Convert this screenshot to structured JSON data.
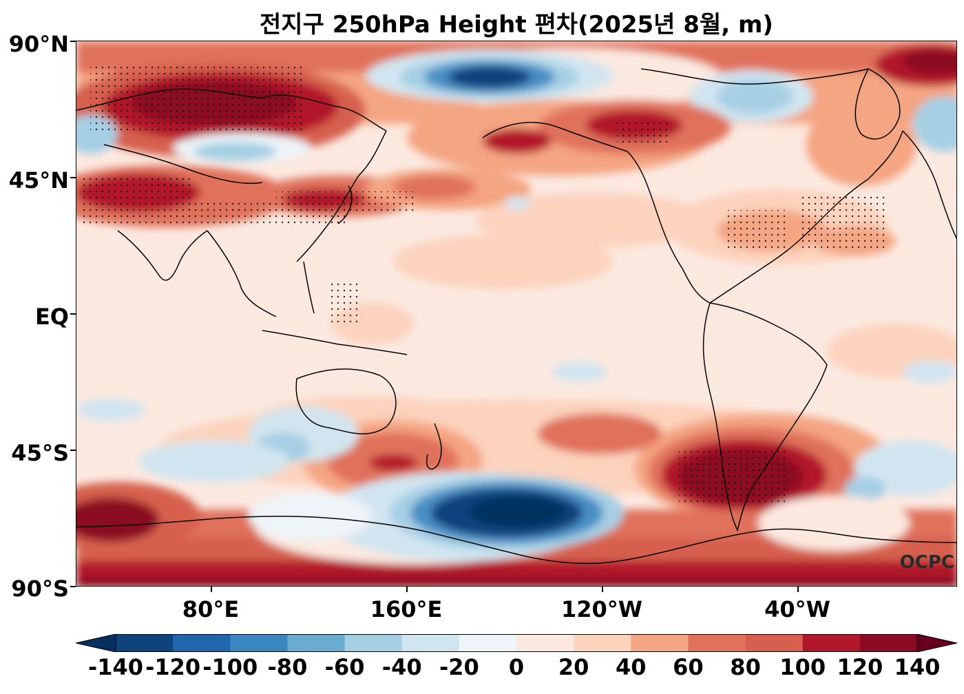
{
  "title": "전지구 250hPa Height 편차(2025년 8월, m)",
  "watermark": "OCPC",
  "lat_ticks": [
    "90°N",
    "45°N",
    "EQ",
    "45°S",
    "90°S"
  ],
  "lon_ticks": [
    "80°E",
    "160°E",
    "120°W",
    "40°W"
  ],
  "colorbar": {
    "labels": [
      "-140",
      "-120",
      "-100",
      "-80",
      "-60",
      "-40",
      "-20",
      "0",
      "20",
      "40",
      "60",
      "80",
      "100",
      "120",
      "140"
    ],
    "colors": [
      "#053061",
      "#0f437b",
      "#2166ac",
      "#3a87c0",
      "#6aacd0",
      "#a6cfe4",
      "#d1e5f0",
      "#eef4f8",
      "#fbe9e0",
      "#fcd3bd",
      "#f4a582",
      "#e0725c",
      "#d6604d",
      "#b2182b",
      "#8b0a24",
      "#67001f"
    ]
  },
  "map": {
    "background_color": "#fbe9e0",
    "positive_colors": [
      "#fcd3bd",
      "#f4a582",
      "#e0725c",
      "#b2182b",
      "#67001f"
    ],
    "negative_colors": [
      "#d1e5f0",
      "#a6cfe4",
      "#4a8fc4",
      "#0f437b",
      "#053061"
    ],
    "stipple_note": "dots mark statistically significant areas"
  }
}
